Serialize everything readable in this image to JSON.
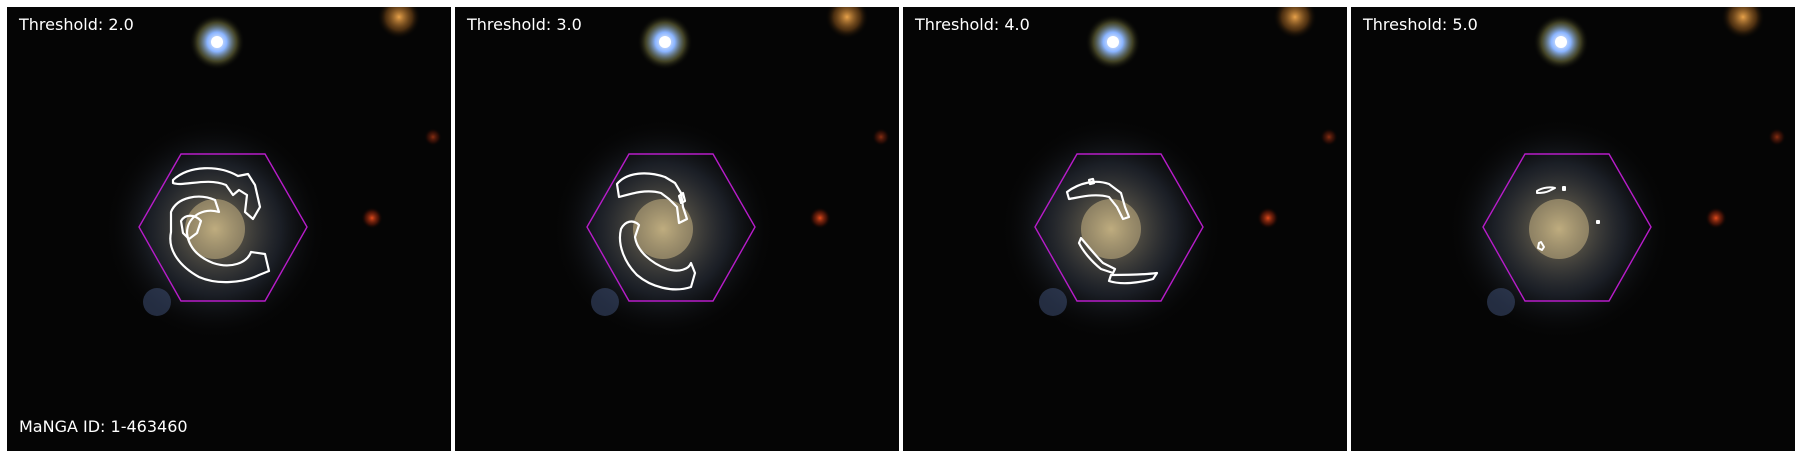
{
  "panels": [
    {
      "threshold_label": "Threshold: 2.0"
    },
    {
      "threshold_label": "Threshold: 3.0"
    },
    {
      "threshold_label": "Threshold: 4.0"
    },
    {
      "threshold_label": "Threshold: 5.0"
    }
  ],
  "galaxy_id_label": "MaNGA ID: 1-463460",
  "colors": {
    "hexagon": "#b71cc9",
    "contour": "#ffffff",
    "background": "#050505"
  }
}
